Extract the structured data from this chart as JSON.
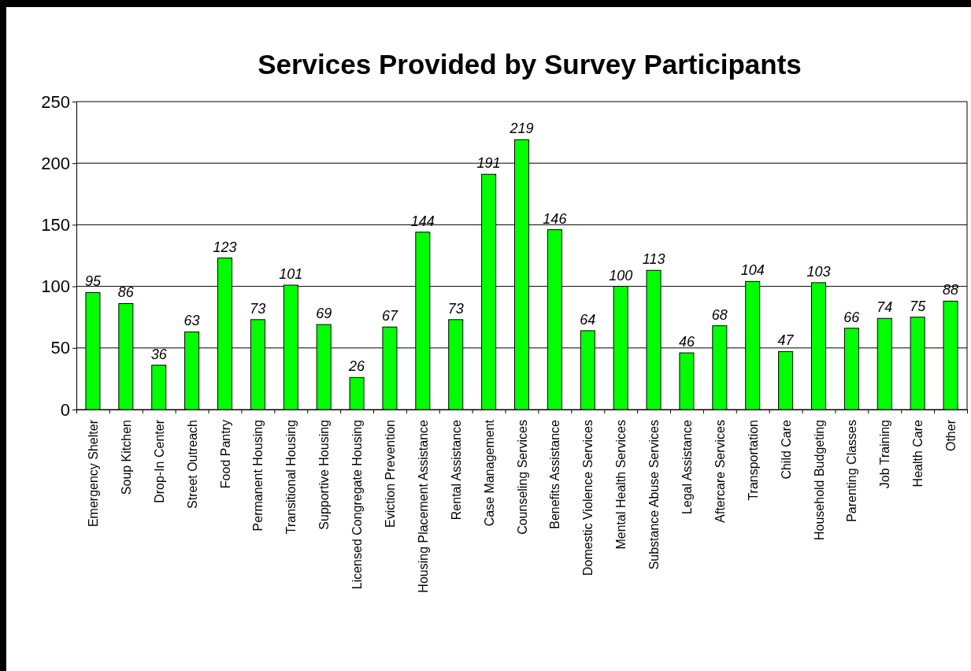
{
  "chart_data": {
    "type": "bar",
    "title": "Services Provided by Survey Participants",
    "categories": [
      "Emergency Shelter",
      "Soup Kitchen",
      "Drop-In Center",
      "Street Outreach",
      "Food Pantry",
      "Permanent Housing",
      "Transitional Housing",
      "Supportive Housing",
      "Licensed Congregate Housing",
      "Eviction Prevention",
      "Housing Placement Assistance",
      "Rental Assistance",
      "Case Management",
      "Counseling Services",
      "Benefits Assistance",
      "Domestic Violence Services",
      "Mental Health Services",
      "Substance Abuse Services",
      "Legal Assistance",
      "Aftercare Services",
      "Transportation",
      "Child Care",
      "Household Budgeting",
      "Parenting Classes",
      "Job Training",
      "Health Care",
      "Other"
    ],
    "values": [
      95,
      86,
      36,
      63,
      123,
      73,
      101,
      69,
      26,
      67,
      144,
      73,
      191,
      219,
      146,
      64,
      100,
      113,
      46,
      68,
      104,
      47,
      103,
      66,
      74,
      75,
      88
    ],
    "color": "#00ff00",
    "ylim": [
      0,
      250
    ],
    "yticks": [
      0,
      50,
      100,
      150,
      200,
      250
    ],
    "grid": "y",
    "data_labels": true
  }
}
